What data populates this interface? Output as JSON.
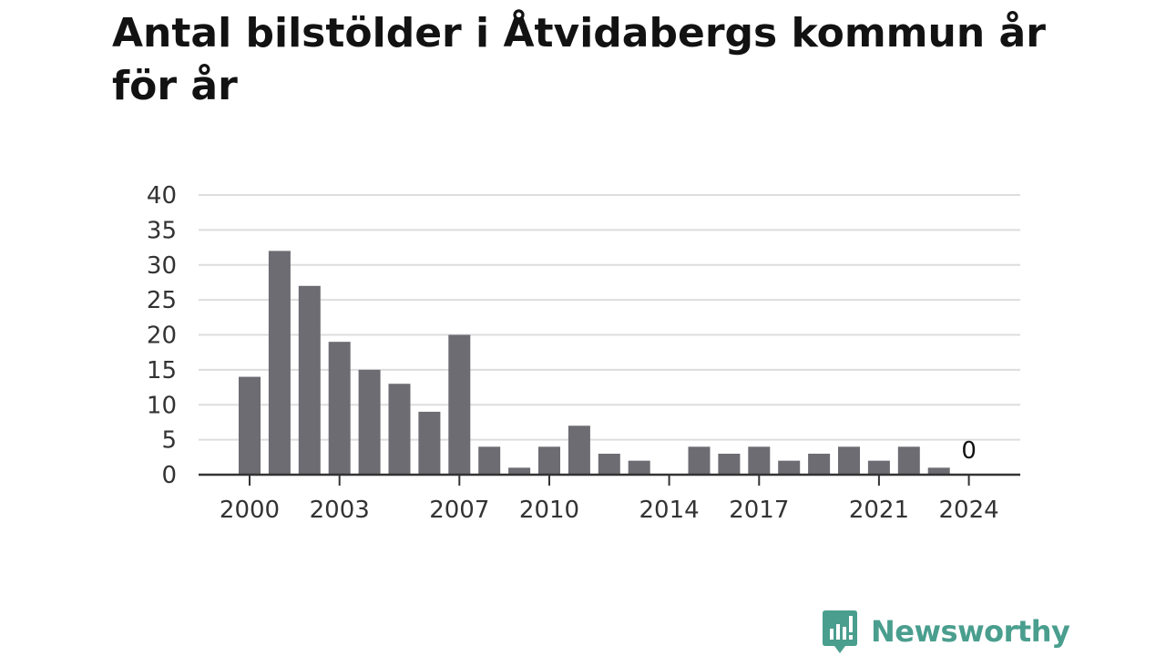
{
  "chart_data": {
    "type": "bar",
    "title": "Antal bilstölder i Åtvidabergs kommun år för år",
    "xlabel": "",
    "ylabel": "",
    "ylim": [
      0,
      40
    ],
    "yticks": [
      0,
      5,
      10,
      15,
      20,
      25,
      30,
      35,
      40
    ],
    "xtick_labels": [
      "2000",
      "2003",
      "2007",
      "2010",
      "2014",
      "2017",
      "2021",
      "2024"
    ],
    "grid": true,
    "bar_color": "#6d6c72",
    "categories": [
      "2000",
      "2001",
      "2002",
      "2003",
      "2004",
      "2005",
      "2006",
      "2007",
      "2008",
      "2009",
      "2010",
      "2011",
      "2012",
      "2013",
      "2014",
      "2015",
      "2016",
      "2017",
      "2018",
      "2019",
      "2020",
      "2021",
      "2022",
      "2023",
      "2024"
    ],
    "values": [
      14,
      32,
      27,
      19,
      15,
      13,
      9,
      20,
      4,
      1,
      4,
      7,
      3,
      2,
      0,
      4,
      3,
      4,
      2,
      3,
      4,
      2,
      4,
      1,
      0
    ],
    "annotations": [
      {
        "category": "2024",
        "text": "0"
      }
    ]
  },
  "branding": {
    "name": "Newsworthy",
    "color": "#4a9e8e",
    "logo_icon": "bar-chart-speech-bubble-icon"
  }
}
